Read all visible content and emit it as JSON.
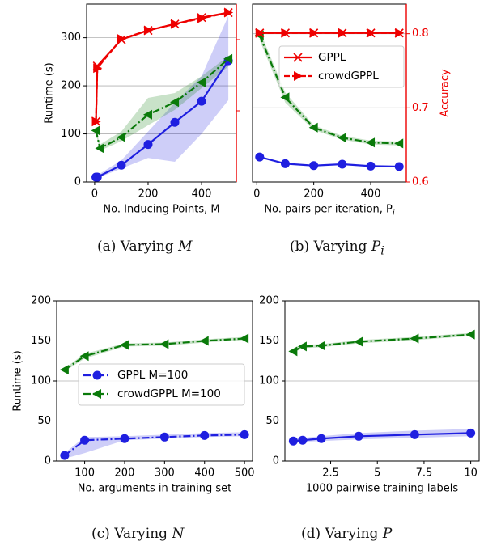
{
  "colors": {
    "blue": "#1f1fe0",
    "green": "#0a7a0a",
    "red": "#ee0000",
    "grid": "#b0b0b0"
  },
  "captions": [
    {
      "prefix": "(a) Varying ",
      "var": "M",
      "sub": ""
    },
    {
      "prefix": "(b) Varying ",
      "var": "P",
      "sub": "i"
    },
    {
      "prefix": "(c) Varying ",
      "var": "N",
      "sub": ""
    },
    {
      "prefix": "(d) Varying ",
      "var": "P",
      "sub": ""
    }
  ],
  "chart_data": [
    {
      "id": "a",
      "type": "line",
      "xlabel": "No. Inducing Points, M",
      "ylabel": "Runtime (s)",
      "y2label": "",
      "xlim": [
        -30,
        530
      ],
      "ylim": [
        0,
        370
      ],
      "xticks": [
        0,
        200,
        400
      ],
      "yticks": [
        0,
        100,
        200,
        300
      ],
      "y2lim": [
        0.6,
        0.85
      ],
      "y2ticks": [],
      "series": [
        {
          "color": "blue",
          "marker": "circle",
          "dash": "solid",
          "axis": "left",
          "x": [
            5,
            10,
            100,
            200,
            300,
            400,
            500
          ],
          "y": [
            10,
            10,
            35,
            78,
            124,
            168,
            252
          ],
          "band_low": [
            8,
            8,
            28,
            50,
            42,
            100,
            170
          ],
          "band_high": [
            12,
            14,
            45,
            105,
            165,
            220,
            345
          ]
        },
        {
          "color": "green",
          "marker": "tri-left",
          "dash": "dashdot",
          "axis": "left",
          "x": [
            5,
            20,
            100,
            200,
            300,
            400,
            500
          ],
          "y": [
            107,
            70,
            93,
            140,
            166,
            207,
            256
          ],
          "band_low": [
            100,
            65,
            85,
            118,
            150,
            195,
            240
          ],
          "band_high": [
            110,
            78,
            105,
            175,
            185,
            220,
            262
          ]
        },
        {
          "color": "red",
          "marker": "x",
          "dash": "solid",
          "axis": "right",
          "x": [
            5,
            10,
            100,
            200,
            300,
            400,
            500
          ],
          "y": [
            0.685,
            0.763,
            0.8,
            0.813,
            0.822,
            0.831,
            0.838
          ]
        },
        {
          "color": "red",
          "marker": "tri-right",
          "dash": "dashed",
          "axis": "right",
          "x": [
            5,
            10,
            100,
            200,
            300,
            400,
            500
          ],
          "y": [
            0.685,
            0.76,
            0.801,
            0.813,
            0.822,
            0.83,
            0.838
          ]
        }
      ]
    },
    {
      "id": "b",
      "type": "line",
      "xlabel": "No. pairs per iteration, P",
      "xlabel_sub": "i",
      "ylabel": "",
      "y2label": "Accuracy",
      "xlim": [
        -15,
        525
      ],
      "ylim": [
        0,
        370
      ],
      "xticks": [
        0,
        200,
        400
      ],
      "yticks": [],
      "y2lim": [
        0.6,
        0.84
      ],
      "y2ticks": [
        0.6,
        0.7,
        0.8
      ],
      "legend": [
        "GPPL",
        "crowdGPPL"
      ],
      "series": [
        {
          "color": "blue",
          "marker": "circle",
          "dash": "solid",
          "axis": "left",
          "x": [
            10,
            100,
            200,
            300,
            400,
            500
          ],
          "y": [
            52,
            38,
            34,
            37,
            33,
            32
          ]
        },
        {
          "color": "green",
          "marker": "tri-left",
          "dash": "dashdot",
          "axis": "left",
          "x": [
            10,
            100,
            200,
            300,
            400,
            500
          ],
          "y": [
            305,
            176,
            113,
            92,
            82,
            80
          ],
          "band_low": [
            295,
            165,
            108,
            88,
            78,
            76
          ],
          "band_high": [
            315,
            186,
            118,
            96,
            86,
            84
          ]
        },
        {
          "color": "red",
          "marker": "x",
          "dash": "solid",
          "axis": "right",
          "x": [
            10,
            100,
            200,
            300,
            400,
            500
          ],
          "y": [
            0.801,
            0.801,
            0.801,
            0.801,
            0.801,
            0.801
          ]
        },
        {
          "color": "red",
          "marker": "tri-right",
          "dash": "dashed",
          "axis": "right",
          "x": [
            10,
            100,
            200,
            300,
            400,
            500
          ],
          "y": [
            0.801,
            0.801,
            0.801,
            0.801,
            0.801,
            0.801
          ]
        }
      ]
    },
    {
      "id": "c",
      "type": "line",
      "xlabel": "No. arguments in training set",
      "ylabel": "Runtime (s)",
      "xlim": [
        30,
        520
      ],
      "ylim": [
        0,
        200
      ],
      "xticks": [
        100,
        200,
        300,
        400,
        500
      ],
      "yticks": [
        0,
        50,
        100,
        150,
        200
      ],
      "legend": [
        "GPPL M=100",
        "crowdGPPL M=100"
      ],
      "series": [
        {
          "color": "blue",
          "marker": "circle",
          "dash": "dashdot",
          "axis": "left",
          "x": [
            50,
            100,
            200,
            300,
            400,
            500
          ],
          "y": [
            7,
            26,
            28,
            30,
            32,
            33
          ],
          "band_low": [
            3,
            10,
            26,
            28,
            30,
            31
          ],
          "band_high": [
            10,
            30,
            31,
            33,
            35,
            36
          ]
        },
        {
          "color": "green",
          "marker": "tri-left",
          "dash": "dashdot",
          "axis": "left",
          "x": [
            50,
            100,
            200,
            300,
            400,
            500
          ],
          "y": [
            114,
            131,
            145,
            146,
            150,
            153
          ],
          "band_low": [
            112,
            128,
            143,
            144,
            148,
            151
          ],
          "band_high": [
            116,
            134,
            147,
            148,
            152,
            155
          ]
        }
      ]
    },
    {
      "id": "d",
      "type": "line",
      "xlabel": "1000 pairwise training labels",
      "ylabel": "",
      "xlim": [
        0.05,
        10.45
      ],
      "ylim": [
        0,
        200
      ],
      "xticks": [
        2.5,
        5.0,
        7.5,
        10.0
      ],
      "yticks": [
        0,
        50,
        100,
        150,
        200
      ],
      "series": [
        {
          "color": "blue",
          "marker": "circle",
          "dash": "solid",
          "axis": "left",
          "x": [
            0.5,
            1.0,
            2.0,
            4.0,
            7.0,
            10.0
          ],
          "y": [
            25,
            26,
            28,
            31,
            33,
            35
          ],
          "band_low": [
            23,
            24,
            25,
            27,
            29,
            31
          ],
          "band_high": [
            28,
            29,
            31,
            35,
            38,
            40
          ]
        },
        {
          "color": "green",
          "marker": "tri-left",
          "dash": "dashdot",
          "axis": "left",
          "x": [
            0.5,
            1.0,
            2.0,
            4.0,
            7.0,
            10.0
          ],
          "y": [
            137,
            143,
            144,
            149,
            153,
            158
          ],
          "band_low": [
            135,
            141,
            142,
            147,
            151,
            156
          ],
          "band_high": [
            139,
            145,
            146,
            151,
            155,
            160
          ]
        }
      ]
    }
  ]
}
